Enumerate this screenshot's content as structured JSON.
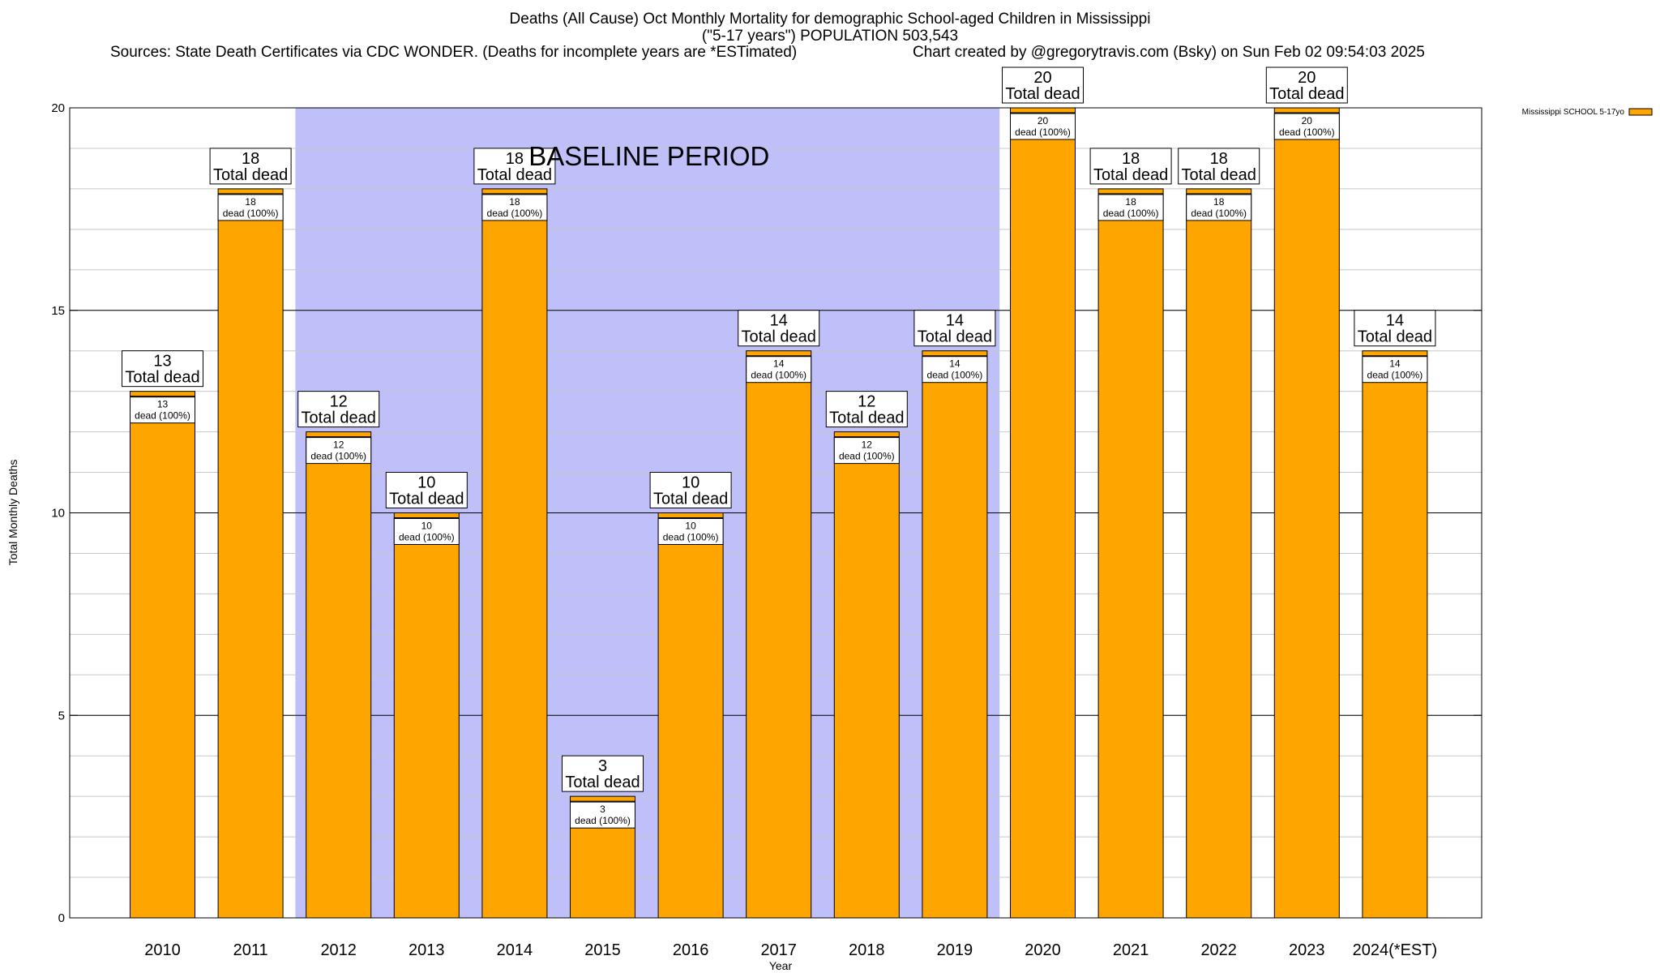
{
  "header": {
    "title_line1": "Deaths (All Cause) Oct Monthly Mortality for demographic School-aged Children in Mississippi",
    "title_line2": "(\"5-17 years\") POPULATION 503,543",
    "sources": "Sources: State Death Certificates via CDC WONDER. (Deaths for incomplete years are *ESTimated)",
    "credit": "Chart created by @gregorytravis.com (Bsky) on Sun Feb 02 09:54:03 2025"
  },
  "colors": {
    "bar": "#ffa500",
    "baseline_band": "#bfbffa",
    "grid": "#c8c8c8",
    "background": "#ffffff",
    "axis": "#000000"
  },
  "chart_data": {
    "type": "bar",
    "title": "Deaths (All Cause) Oct Monthly Mortality for demographic School-aged Children in Mississippi",
    "xlabel": "Year",
    "ylabel": "Total Monthly Deaths",
    "ylim": [
      0,
      20
    ],
    "yticks": [
      0,
      5,
      10,
      15,
      20
    ],
    "grid": true,
    "legend_position": "top-right",
    "categories": [
      "2010",
      "2011",
      "2012",
      "2013",
      "2014",
      "2015",
      "2016",
      "2017",
      "2018",
      "2019",
      "2020",
      "2021",
      "2022",
      "2023",
      "2024(*EST)"
    ],
    "series": [
      {
        "name": "Mississippi SCHOOL 5-17yo",
        "values": [
          13,
          18,
          12,
          10,
          18,
          3,
          10,
          14,
          12,
          14,
          20,
          18,
          18,
          20,
          14
        ]
      }
    ],
    "total_label_suffix": "Total dead",
    "segment_label": "dead (100%)",
    "baseline_band": {
      "label": "BASELINE PERIOD",
      "from_category": "2012",
      "to_category": "2019"
    }
  }
}
